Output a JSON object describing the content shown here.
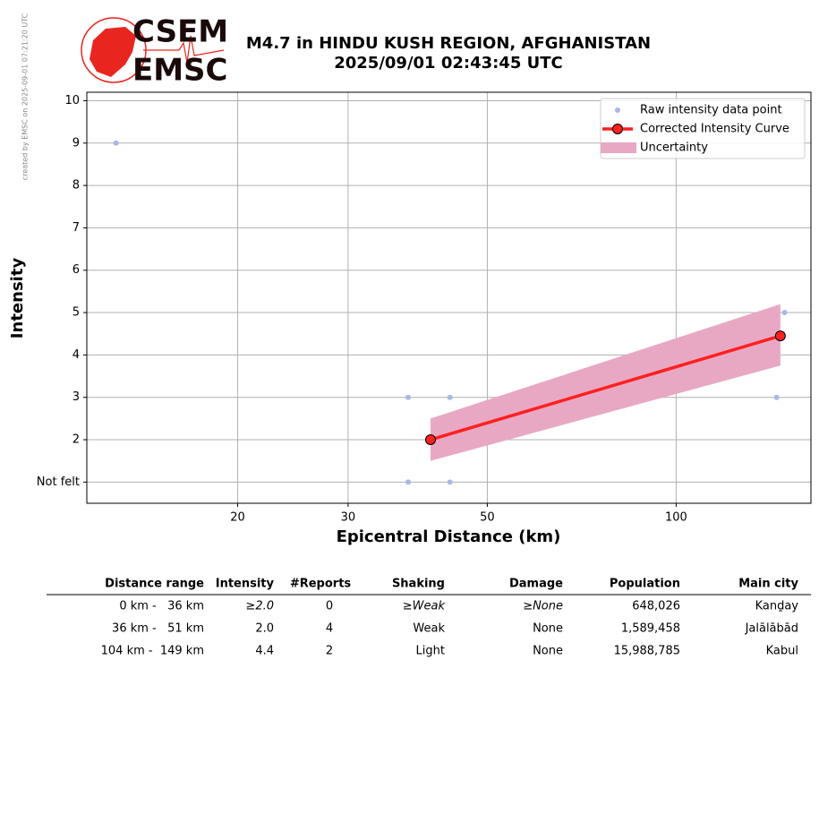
{
  "header": {
    "side_note": "created by EMSC on 2025-09-01 07:21:20 UTC",
    "logo_top": "CSEM",
    "logo_bottom": "EMSC"
  },
  "chart_data": {
    "type": "line",
    "title": "M4.7 in HINDU KUSH REGION, AFGHANISTAN",
    "subtitle": "2025/09/01 02:43:45 UTC",
    "x_label": "Epicentral Distance (km)",
    "y_label": "Intensity",
    "xscale": "log",
    "xlim": [
      11.5,
      164
    ],
    "xticks": [
      20,
      30,
      50,
      100
    ],
    "ylim": [
      0.5,
      10.2
    ],
    "yticks": [
      {
        "value": 1,
        "label": "Not felt"
      },
      2,
      3,
      4,
      5,
      6,
      7,
      8,
      9,
      10
    ],
    "grid": true,
    "legend": "upper right",
    "series": [
      {
        "name": "Raw intensity data point",
        "type": "scatter",
        "color": "#aab8e6",
        "x": [
          12.8,
          37.4,
          43.6,
          37.4,
          43.6,
          148.9,
          144.6
        ],
        "values": [
          9,
          3,
          3,
          1,
          1,
          5,
          3
        ]
      },
      {
        "name": "Corrected Intensity Curve",
        "type": "line",
        "color": "#ff2020",
        "x": [
          40.6,
          146.6
        ],
        "values": [
          2,
          4.45
        ]
      },
      {
        "name": "Uncertainty",
        "type": "band",
        "color": "#e8a8c4",
        "x": [
          40.6,
          146.6
        ],
        "lower": [
          1.5,
          3.75
        ],
        "upper": [
          2.5,
          5.2
        ]
      }
    ]
  },
  "table": {
    "columns": [
      "Distance range",
      "Intensity",
      "#Reports",
      "Shaking",
      "Damage",
      "Population",
      "Main city"
    ],
    "rows": [
      [
        "0 km -   36 km",
        "≥2.0",
        "0",
        "≥Weak",
        "≥None",
        "648,026",
        "Kanḏay"
      ],
      [
        "36 km -   51 km",
        "2.0",
        "4",
        "Weak",
        "None",
        "1,589,458",
        "Jalālābād"
      ],
      [
        "104 km -  149 km",
        "4.4",
        "2",
        "Light",
        "None",
        "15,988,785",
        "Kabul"
      ]
    ]
  }
}
